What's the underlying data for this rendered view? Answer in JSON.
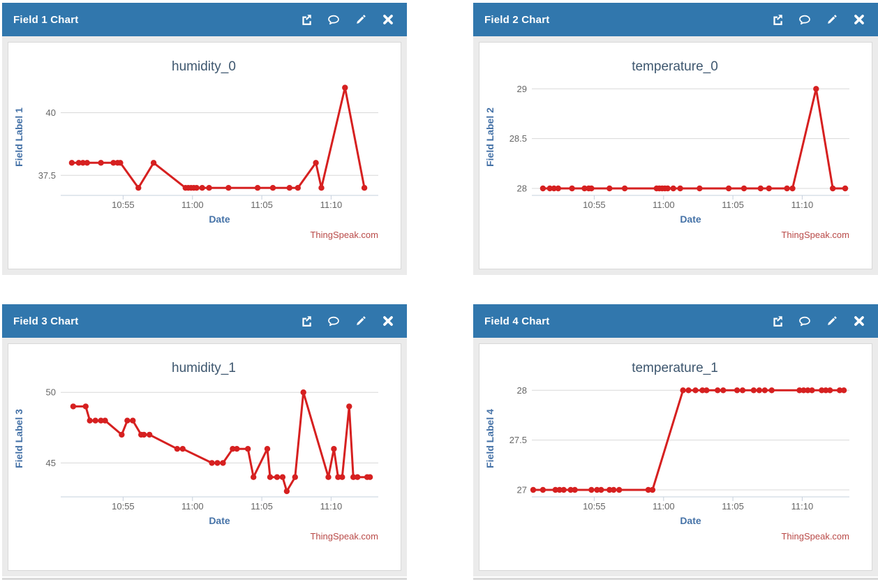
{
  "colors": {
    "header_blue": "#3177ad",
    "panel_body_gray": "#ebebeb",
    "series_red": "#d62020",
    "gridline": "#d8d8d8",
    "axis_line": "#c6d0dc",
    "chart_title": "#3e576f",
    "axis_title_blue": "#4572a7",
    "tick_label": "#666666",
    "credits_red": "#b94a48"
  },
  "header_icons": [
    {
      "name": "external-link-icon",
      "action": "open-in-new-window"
    },
    {
      "name": "comment-icon",
      "action": "comments"
    },
    {
      "name": "pencil-icon",
      "action": "edit"
    },
    {
      "name": "close-icon",
      "action": "close"
    }
  ],
  "panels": [
    {
      "header": {
        "title": "Field 1 Chart"
      },
      "chart_data": {
        "type": "line",
        "title": "humidity_0",
        "xlabel": "Date",
        "ylabel": "Field Label 1",
        "credits": "ThingSpeak.com",
        "line_color": "#d62020",
        "x_unit": "minutes after 10:50",
        "xlim": [
          0.5,
          23.4
        ],
        "ylim": [
          36.7,
          41.35
        ],
        "x_ticks": [
          {
            "t": 5,
            "label": "10:55"
          },
          {
            "t": 10,
            "label": "11:00"
          },
          {
            "t": 15,
            "label": "11:05"
          },
          {
            "t": 20,
            "label": "11:10"
          }
        ],
        "y_gridlines": [
          {
            "v": 37.5,
            "label": "37.5"
          },
          {
            "v": 40,
            "label": "40"
          }
        ],
        "points": [
          [
            1.3,
            38
          ],
          [
            1.8,
            38
          ],
          [
            2.1,
            38
          ],
          [
            2.4,
            38
          ],
          [
            3.4,
            38
          ],
          [
            4.3,
            38
          ],
          [
            4.6,
            38
          ],
          [
            4.8,
            38
          ],
          [
            6.1,
            37
          ],
          [
            7.2,
            38
          ],
          [
            9.5,
            37
          ],
          [
            9.7,
            37
          ],
          [
            9.9,
            37
          ],
          [
            10.1,
            37
          ],
          [
            10.3,
            37
          ],
          [
            10.7,
            37
          ],
          [
            11.2,
            37
          ],
          [
            12.6,
            37
          ],
          [
            14.7,
            37
          ],
          [
            15.8,
            37
          ],
          [
            17.0,
            37
          ],
          [
            17.6,
            37
          ],
          [
            18.9,
            38
          ],
          [
            19.3,
            37
          ],
          [
            21.0,
            41
          ],
          [
            22.4,
            37
          ]
        ]
      }
    },
    {
      "header": {
        "title": "Field 2 Chart"
      },
      "chart_data": {
        "type": "line",
        "title": "temperature_0",
        "xlabel": "Date",
        "ylabel": "Field Label 2",
        "credits": "ThingSpeak.com",
        "line_color": "#d62020",
        "x_unit": "minutes after 10:50",
        "xlim": [
          0.5,
          23.4
        ],
        "ylim": [
          27.93,
          29.1
        ],
        "x_ticks": [
          {
            "t": 5,
            "label": "10:55"
          },
          {
            "t": 10,
            "label": "11:00"
          },
          {
            "t": 15,
            "label": "11:05"
          },
          {
            "t": 20,
            "label": "11:10"
          }
        ],
        "y_gridlines": [
          {
            "v": 28,
            "label": "28"
          },
          {
            "v": 28.5,
            "label": "28.5"
          },
          {
            "v": 29,
            "label": "29"
          }
        ],
        "points": [
          [
            1.3,
            28
          ],
          [
            1.8,
            28
          ],
          [
            2.1,
            28
          ],
          [
            2.4,
            28
          ],
          [
            3.4,
            28
          ],
          [
            4.3,
            28
          ],
          [
            4.6,
            28
          ],
          [
            4.8,
            28
          ],
          [
            6.1,
            28
          ],
          [
            7.2,
            28
          ],
          [
            9.5,
            28
          ],
          [
            9.7,
            28
          ],
          [
            9.9,
            28
          ],
          [
            10.1,
            28
          ],
          [
            10.3,
            28
          ],
          [
            10.7,
            28
          ],
          [
            11.2,
            28
          ],
          [
            12.6,
            28
          ],
          [
            14.7,
            28
          ],
          [
            15.8,
            28
          ],
          [
            17.0,
            28
          ],
          [
            17.6,
            28
          ],
          [
            18.9,
            28
          ],
          [
            19.3,
            28
          ],
          [
            21.0,
            29
          ],
          [
            22.2,
            28
          ],
          [
            23.1,
            28
          ]
        ]
      }
    },
    {
      "header": {
        "title": "Field 3 Chart"
      },
      "chart_data": {
        "type": "line",
        "title": "humidity_1",
        "xlabel": "Date",
        "ylabel": "Field Label 3",
        "credits": "ThingSpeak.com",
        "line_color": "#d62020",
        "x_unit": "minutes after 10:50",
        "xlim": [
          0.5,
          23.4
        ],
        "ylim": [
          42.6,
          50.85
        ],
        "x_ticks": [
          {
            "t": 5,
            "label": "10:55"
          },
          {
            "t": 10,
            "label": "11:00"
          },
          {
            "t": 15,
            "label": "11:05"
          },
          {
            "t": 20,
            "label": "11:10"
          }
        ],
        "y_gridlines": [
          {
            "v": 45,
            "label": "45"
          },
          {
            "v": 50,
            "label": "50"
          }
        ],
        "points": [
          [
            1.4,
            49
          ],
          [
            2.3,
            49
          ],
          [
            2.6,
            48
          ],
          [
            3.0,
            48
          ],
          [
            3.4,
            48
          ],
          [
            3.7,
            48
          ],
          [
            4.9,
            47
          ],
          [
            5.3,
            48
          ],
          [
            5.7,
            48
          ],
          [
            6.3,
            47
          ],
          [
            6.5,
            47
          ],
          [
            6.9,
            47
          ],
          [
            8.9,
            46
          ],
          [
            9.3,
            46
          ],
          [
            11.4,
            45
          ],
          [
            11.8,
            45
          ],
          [
            12.2,
            45
          ],
          [
            12.9,
            46
          ],
          [
            13.2,
            46
          ],
          [
            14.0,
            46
          ],
          [
            14.4,
            44
          ],
          [
            15.4,
            46
          ],
          [
            15.6,
            44
          ],
          [
            16.1,
            44
          ],
          [
            16.5,
            44
          ],
          [
            16.8,
            43
          ],
          [
            17.4,
            44
          ],
          [
            18.0,
            50
          ],
          [
            19.8,
            44
          ],
          [
            20.2,
            46
          ],
          [
            20.5,
            44
          ],
          [
            20.8,
            44
          ],
          [
            21.3,
            49
          ],
          [
            21.6,
            44
          ],
          [
            21.9,
            44
          ],
          [
            22.6,
            44
          ],
          [
            22.8,
            44
          ]
        ]
      }
    },
    {
      "header": {
        "title": "Field 4 Chart"
      },
      "chart_data": {
        "type": "line",
        "title": "temperature_1",
        "xlabel": "Date",
        "ylabel": "Field Label 4",
        "credits": "ThingSpeak.com",
        "line_color": "#d62020",
        "x_unit": "minutes after 10:50",
        "xlim": [
          0.5,
          23.4
        ],
        "ylim": [
          26.93,
          28.1
        ],
        "x_ticks": [
          {
            "t": 5,
            "label": "10:55"
          },
          {
            "t": 10,
            "label": "11:00"
          },
          {
            "t": 15,
            "label": "11:05"
          },
          {
            "t": 20,
            "label": "11:10"
          }
        ],
        "y_gridlines": [
          {
            "v": 27,
            "label": "27"
          },
          {
            "v": 27.5,
            "label": "27.5"
          },
          {
            "v": 28,
            "label": "28"
          }
        ],
        "points": [
          [
            0.6,
            27
          ],
          [
            1.3,
            27
          ],
          [
            2.2,
            27
          ],
          [
            2.5,
            27
          ],
          [
            2.8,
            27
          ],
          [
            3.3,
            27
          ],
          [
            3.6,
            27
          ],
          [
            4.8,
            27
          ],
          [
            5.2,
            27
          ],
          [
            5.5,
            27
          ],
          [
            6.1,
            27
          ],
          [
            6.4,
            27
          ],
          [
            6.8,
            27
          ],
          [
            8.9,
            27
          ],
          [
            9.2,
            27
          ],
          [
            11.4,
            28
          ],
          [
            11.8,
            28
          ],
          [
            12.3,
            28
          ],
          [
            12.8,
            28
          ],
          [
            13.1,
            28
          ],
          [
            13.9,
            28
          ],
          [
            14.3,
            28
          ],
          [
            15.3,
            28
          ],
          [
            15.7,
            28
          ],
          [
            16.5,
            28
          ],
          [
            16.9,
            28
          ],
          [
            17.3,
            28
          ],
          [
            17.8,
            28
          ],
          [
            19.8,
            28
          ],
          [
            20.1,
            28
          ],
          [
            20.4,
            28
          ],
          [
            20.7,
            28
          ],
          [
            21.4,
            28
          ],
          [
            21.7,
            28
          ],
          [
            22.0,
            28
          ],
          [
            22.7,
            28
          ],
          [
            23.0,
            28
          ]
        ]
      }
    }
  ]
}
